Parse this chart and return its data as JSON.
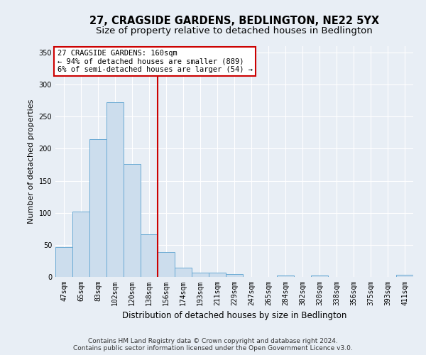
{
  "title": "27, CRAGSIDE GARDENS, BEDLINGTON, NE22 5YX",
  "subtitle": "Size of property relative to detached houses in Bedlington",
  "xlabel": "Distribution of detached houses by size in Bedlington",
  "ylabel": "Number of detached properties",
  "bar_labels": [
    "47sqm",
    "65sqm",
    "83sqm",
    "102sqm",
    "120sqm",
    "138sqm",
    "156sqm",
    "174sqm",
    "193sqm",
    "211sqm",
    "229sqm",
    "247sqm",
    "265sqm",
    "284sqm",
    "302sqm",
    "320sqm",
    "338sqm",
    "356sqm",
    "375sqm",
    "393sqm",
    "411sqm"
  ],
  "bar_values": [
    47,
    102,
    215,
    272,
    176,
    67,
    39,
    14,
    7,
    7,
    4,
    0,
    0,
    2,
    0,
    2,
    0,
    0,
    0,
    0,
    3
  ],
  "bar_color": "#ccdded",
  "bar_edge_color": "#6aaad4",
  "vline_x": 5.5,
  "vline_color": "#cc0000",
  "annotation_text": "27 CRAGSIDE GARDENS: 160sqm\n← 94% of detached houses are smaller (889)\n6% of semi-detached houses are larger (54) →",
  "annotation_box_color": "#ffffff",
  "annotation_edge_color": "#cc0000",
  "ylim": [
    0,
    360
  ],
  "yticks": [
    0,
    50,
    100,
    150,
    200,
    250,
    300,
    350
  ],
  "background_color": "#e8eef5",
  "plot_background": "#e8eef5",
  "footer_line1": "Contains HM Land Registry data © Crown copyright and database right 2024.",
  "footer_line2": "Contains public sector information licensed under the Open Government Licence v3.0.",
  "title_fontsize": 10.5,
  "subtitle_fontsize": 9.5,
  "xlabel_fontsize": 8.5,
  "ylabel_fontsize": 8,
  "tick_fontsize": 7,
  "footer_fontsize": 6.5,
  "annot_fontsize": 7.5
}
